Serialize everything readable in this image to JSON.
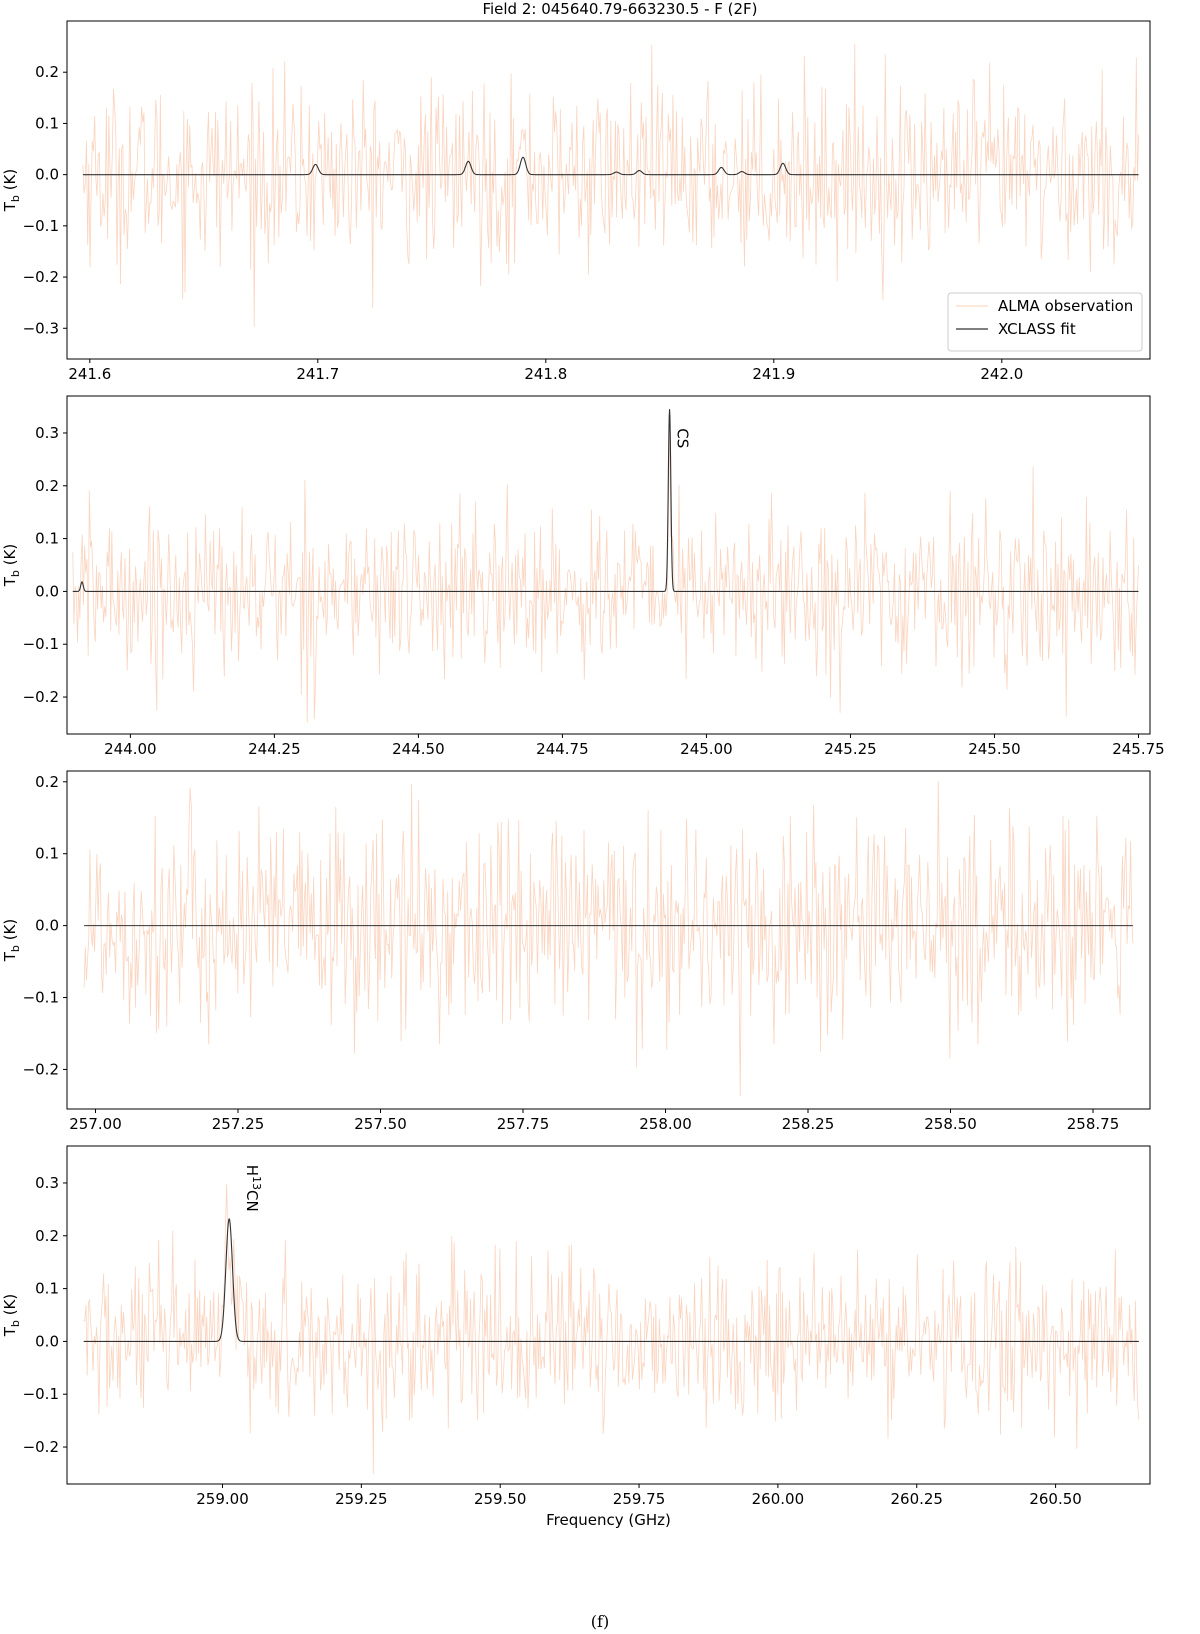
{
  "figure_title": "Field 2: 045640.79-663230.5 - F (2F)",
  "caption": "(f)",
  "colors": {
    "observation": "#f4a070",
    "fit": "#333333",
    "frame": "#000000"
  },
  "chart_data": [
    {
      "type": "line",
      "title": "",
      "xlabel": "",
      "ylabel_main": "T",
      "ylabel_sub": "b",
      "ylabel_unit": " (K)",
      "xlim": [
        241.59,
        242.065
      ],
      "ylim": [
        -0.36,
        0.3
      ],
      "xticks": [
        241.6,
        241.7,
        241.8,
        241.9,
        242.0
      ],
      "xtick_labels": [
        "241.6",
        "241.7",
        "241.8",
        "241.9",
        "242.0"
      ],
      "yticks": [
        -0.3,
        -0.2,
        -0.1,
        0.0,
        0.1,
        0.2
      ],
      "ytick_labels": [
        "−0.3",
        "−0.2",
        "−0.1",
        "0.0",
        "0.1",
        "0.2"
      ],
      "data_range": [
        241.597,
        242.06
      ],
      "noise_rms": 0.085,
      "fit_lines": [
        {
          "freq": 241.699,
          "amp": 0.02,
          "width": 0.0012
        },
        {
          "freq": 241.766,
          "amp": 0.026,
          "width": 0.0012
        },
        {
          "freq": 241.79,
          "amp": 0.034,
          "width": 0.0012
        },
        {
          "freq": 241.831,
          "amp": 0.005,
          "width": 0.0012
        },
        {
          "freq": 241.841,
          "amp": 0.008,
          "width": 0.0012
        },
        {
          "freq": 241.877,
          "amp": 0.014,
          "width": 0.0012
        },
        {
          "freq": 241.886,
          "amp": 0.006,
          "width": 0.0012
        },
        {
          "freq": 241.904,
          "amp": 0.022,
          "width": 0.0012
        }
      ],
      "annotations": [],
      "legend": {
        "position": "lower right",
        "entries": [
          {
            "label": "ALMA observation",
            "series": "observation"
          },
          {
            "label": "XCLASS fit",
            "series": "fit"
          }
        ]
      }
    },
    {
      "type": "line",
      "title": "",
      "xlabel": "",
      "ylabel_main": "T",
      "ylabel_sub": "b",
      "ylabel_unit": " (K)",
      "xlim": [
        243.89,
        245.77
      ],
      "ylim": [
        -0.27,
        0.37
      ],
      "xticks": [
        244.0,
        244.25,
        244.5,
        244.75,
        245.0,
        245.25,
        245.5,
        245.75
      ],
      "xtick_labels": [
        "244.00",
        "244.25",
        "244.50",
        "244.75",
        "245.00",
        "245.25",
        "245.50",
        "245.75"
      ],
      "yticks": [
        -0.2,
        -0.1,
        0.0,
        0.1,
        0.2,
        0.3
      ],
      "ytick_labels": [
        "−0.2",
        "−0.1",
        "0.0",
        "0.1",
        "0.2",
        "0.3"
      ],
      "data_range": [
        243.9,
        245.75
      ],
      "noise_rms": 0.075,
      "fit_lines": [
        {
          "freq": 243.916,
          "amp": 0.018,
          "width": 0.0022
        },
        {
          "freq": 244.936,
          "amp": 0.345,
          "width": 0.0022
        }
      ],
      "annotations": [
        {
          "text": "CS",
          "freq": 244.936,
          "y": 0.29
        }
      ]
    },
    {
      "type": "line",
      "title": "",
      "xlabel": "",
      "ylabel_main": "T",
      "ylabel_sub": "b",
      "ylabel_unit": " (K)",
      "xlim": [
        256.95,
        258.85
      ],
      "ylim": [
        -0.255,
        0.215
      ],
      "xticks": [
        257.0,
        257.25,
        257.5,
        257.75,
        258.0,
        258.25,
        258.5,
        258.75
      ],
      "xtick_labels": [
        "257.00",
        "257.25",
        "257.50",
        "257.75",
        "258.00",
        "258.25",
        "258.50",
        "258.75"
      ],
      "yticks": [
        -0.2,
        -0.1,
        0.0,
        0.1,
        0.2
      ],
      "ytick_labels": [
        "−0.2",
        "−0.1",
        "0.0",
        "0.1",
        "0.2"
      ],
      "data_range": [
        256.98,
        258.82
      ],
      "noise_rms": 0.075,
      "fit_lines": [],
      "annotations": []
    },
    {
      "type": "line",
      "title": "",
      "xlabel": "Frequency (GHz)",
      "ylabel_main": "T",
      "ylabel_sub": "b",
      "ylabel_unit": " (K)",
      "xlim": [
        258.72,
        260.67
      ],
      "ylim": [
        -0.27,
        0.37
      ],
      "xticks": [
        259.0,
        259.25,
        259.5,
        259.75,
        260.0,
        260.25,
        260.5
      ],
      "xtick_labels": [
        "259.00",
        "259.25",
        "259.50",
        "259.75",
        "260.00",
        "260.25",
        "260.50"
      ],
      "yticks": [
        -0.2,
        -0.1,
        0.0,
        0.1,
        0.2,
        0.3
      ],
      "ytick_labels": [
        "−0.2",
        "−0.1",
        "0.0",
        "0.1",
        "0.2",
        "0.3"
      ],
      "data_range": [
        258.75,
        260.65
      ],
      "noise_rms": 0.075,
      "fit_lines": [
        {
          "freq": 259.012,
          "amp": 0.232,
          "width": 0.006
        }
      ],
      "annotations": [
        {
          "text_main": "H",
          "text_sup": "13",
          "text_tail": "CN",
          "freq": 259.03,
          "y": 0.29
        }
      ]
    }
  ]
}
